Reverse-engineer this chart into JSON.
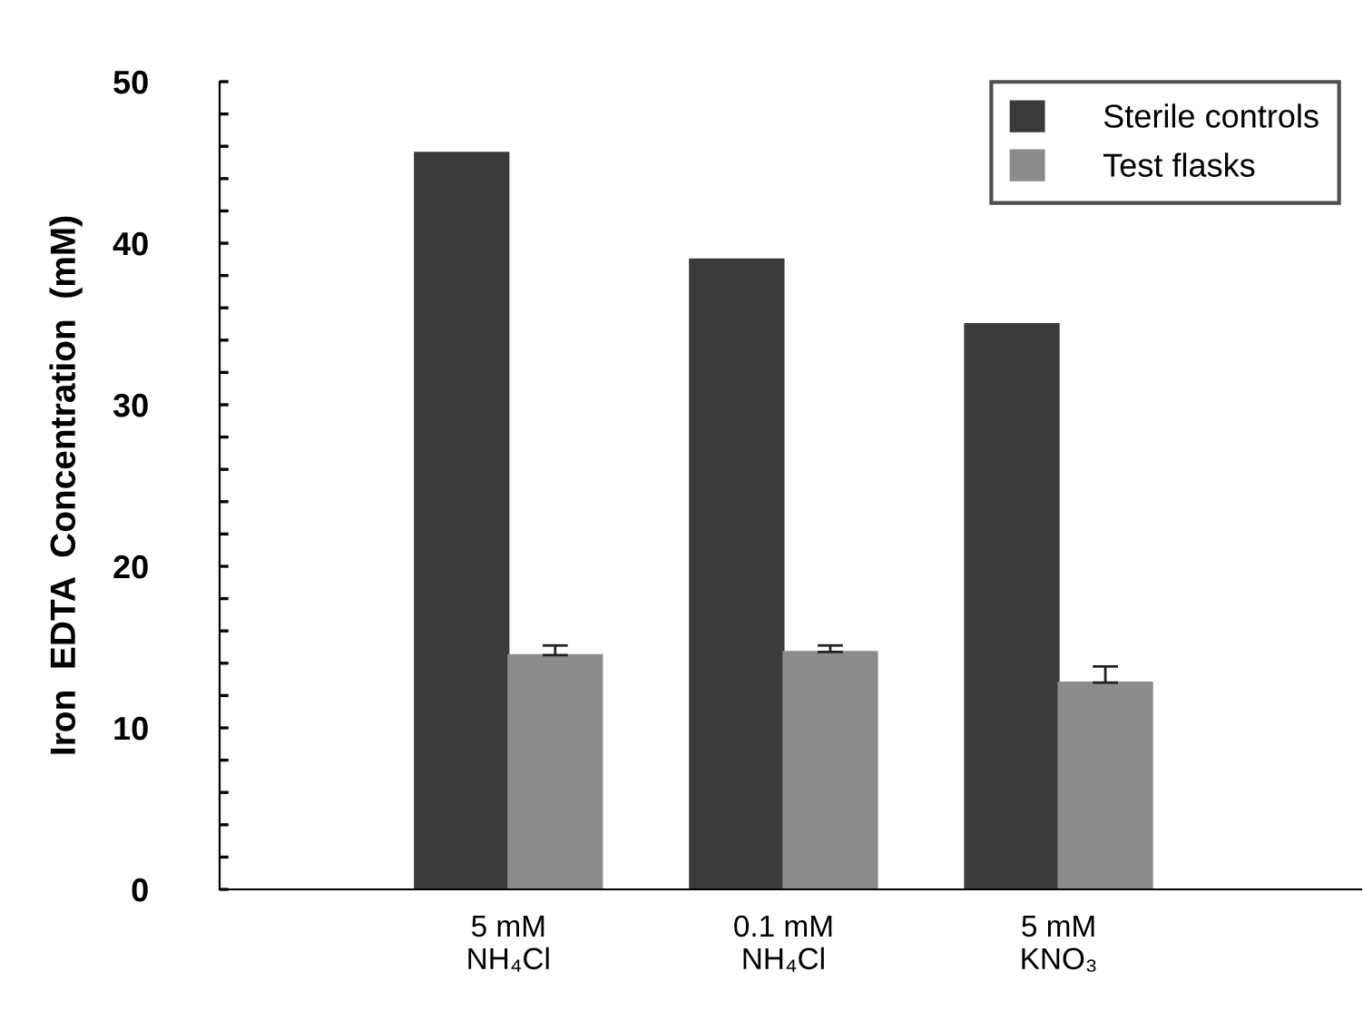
{
  "chart_data": {
    "type": "bar",
    "ylabel": "Iron  EDTA  Concentration  (mM)",
    "categories": [
      "5 mM\nNH₄Cl",
      "0.1 mM\nNH₄Cl",
      "5 mM\nKNO₃"
    ],
    "series": [
      {
        "name": "Sterile controls",
        "color": "#3a3a3a",
        "values": [
          45.6,
          39.0,
          35.0
        ]
      },
      {
        "name": "Test flasks",
        "color": "#8c8c8c",
        "values": [
          14.5,
          14.7,
          12.8
        ],
        "errors": [
          [
            14.5,
            15.1
          ],
          [
            14.7,
            15.1
          ],
          [
            12.8,
            13.8
          ]
        ]
      }
    ],
    "ylim": [
      0,
      50
    ],
    "yticks": [
      0,
      {
        "value": 2,
        "label": null
      },
      {
        "value": 4,
        "label": null
      },
      {
        "value": 6,
        "label": null
      },
      {
        "value": 8,
        "label": null
      },
      10,
      {
        "value": 12,
        "label": null
      },
      {
        "value": 14,
        "label": null
      },
      {
        "value": 16,
        "label": null
      },
      {
        "value": 18,
        "label": null
      },
      20,
      {
        "value": 22,
        "label": null
      },
      {
        "value": 24,
        "label": null
      },
      {
        "value": 26,
        "label": null
      },
      {
        "value": 28,
        "label": null
      },
      30,
      {
        "value": 32,
        "label": null
      },
      {
        "value": 34,
        "label": null
      },
      {
        "value": 36,
        "label": null
      },
      {
        "value": 38,
        "label": null
      },
      40,
      {
        "value": 42,
        "label": null
      },
      {
        "value": 44,
        "label": null
      },
      {
        "value": 46,
        "label": null
      },
      {
        "value": 48,
        "label": null
      },
      50
    ],
    "grid": false,
    "legend": "top right"
  }
}
